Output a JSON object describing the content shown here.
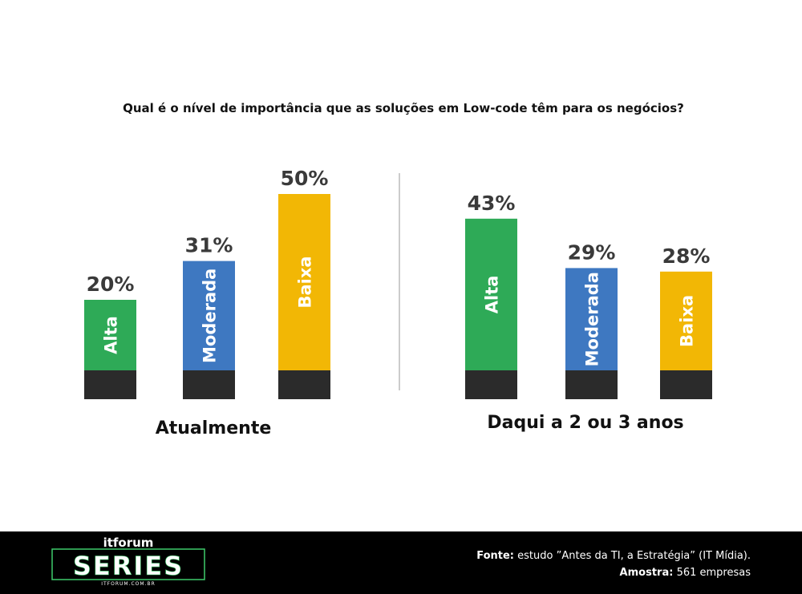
{
  "chart_data": {
    "type": "bar",
    "title": "Qual é o nível de importância que as soluções em Low-code têm para os negócios?",
    "unit": "%",
    "ylim": [
      0,
      50
    ],
    "groups": [
      {
        "label": "Atualmente",
        "bars": [
          {
            "category": "Alta",
            "value": 20,
            "label": "20%",
            "color": "#2eaa57"
          },
          {
            "category": "Moderada",
            "value": 31,
            "label": "31%",
            "color": "#3e78c1"
          },
          {
            "category": "Baixa",
            "value": 50,
            "label": "50%",
            "color": "#f2b705"
          }
        ]
      },
      {
        "label": "Daqui a 2 ou 3 anos",
        "bars": [
          {
            "category": "Alta",
            "value": 43,
            "label": "43%",
            "color": "#2eaa57"
          },
          {
            "category": "Moderada",
            "value": 29,
            "label": "29%",
            "color": "#3e78c1"
          },
          {
            "category": "Baixa",
            "value": 28,
            "label": "28%",
            "color": "#f2b705"
          }
        ]
      }
    ]
  },
  "footer": {
    "logo": {
      "top": "itforum",
      "main": "SERIES",
      "sub": "ITFORUM.COM.BR"
    },
    "source_label": "Fonte:",
    "source_text": "estudo ”Antes da TI, a Estratégia” (IT Mídia).",
    "sample_label": "Amostra:",
    "sample_text": "561 empresas"
  },
  "colors": {
    "base": "#2b2b2b",
    "divider": "#9a9a9a",
    "footer_bg": "#000000",
    "logo_accent": "#3ecb6a"
  }
}
